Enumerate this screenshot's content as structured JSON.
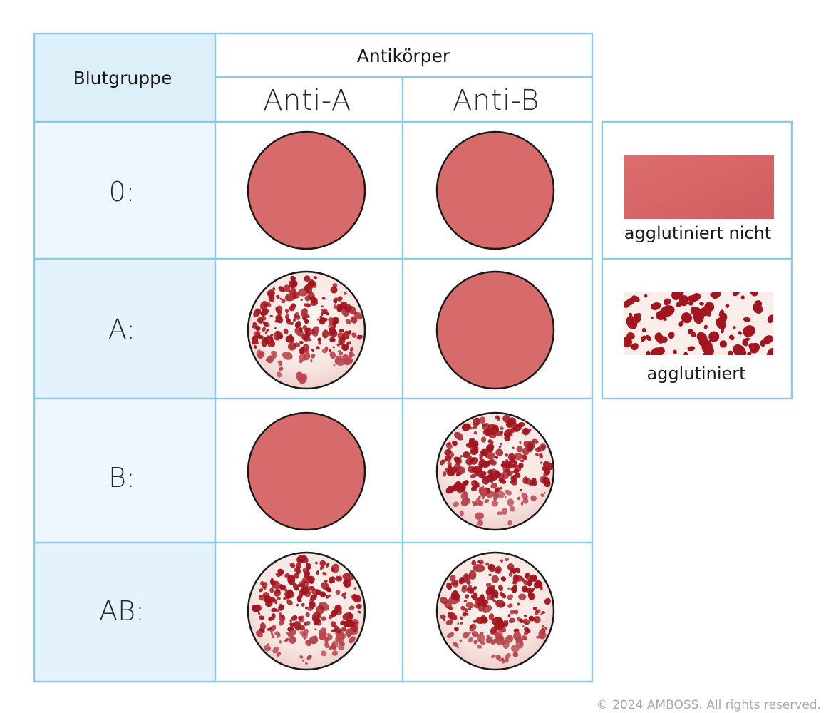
{
  "table": {
    "header_left": "Blutgruppe",
    "header_group": "Antikörper",
    "columns": [
      "Anti-A",
      "Anti-B"
    ],
    "rows": [
      {
        "label": "0:",
        "results": [
          "agglutiniert nicht",
          "agglutiniert nicht"
        ]
      },
      {
        "label": "A:",
        "results": [
          "agglutiniert",
          "agglutiniert nicht"
        ]
      },
      {
        "label": "B:",
        "results": [
          "agglutiniert nicht",
          "agglutiniert"
        ]
      },
      {
        "label": "AB:",
        "results": [
          "agglutiniert",
          "agglutiniert"
        ]
      }
    ]
  },
  "legend": {
    "items": [
      {
        "label": "agglutiniert nicht",
        "pattern": "smooth"
      },
      {
        "label": "agglutiniert",
        "pattern": "clumped"
      }
    ]
  },
  "colors": {
    "grid_line": "#8ecbe0",
    "header_fill": "#ddf0fa",
    "row_fill_1": "#eef7fd",
    "row_fill_2": "#e4f2fb",
    "smooth_fill": "#d76b6b",
    "clump_dot": "#a3151f",
    "clump_bg": "#fbeeea"
  },
  "copyright": "© 2024 AMBOSS. All rights reserved."
}
